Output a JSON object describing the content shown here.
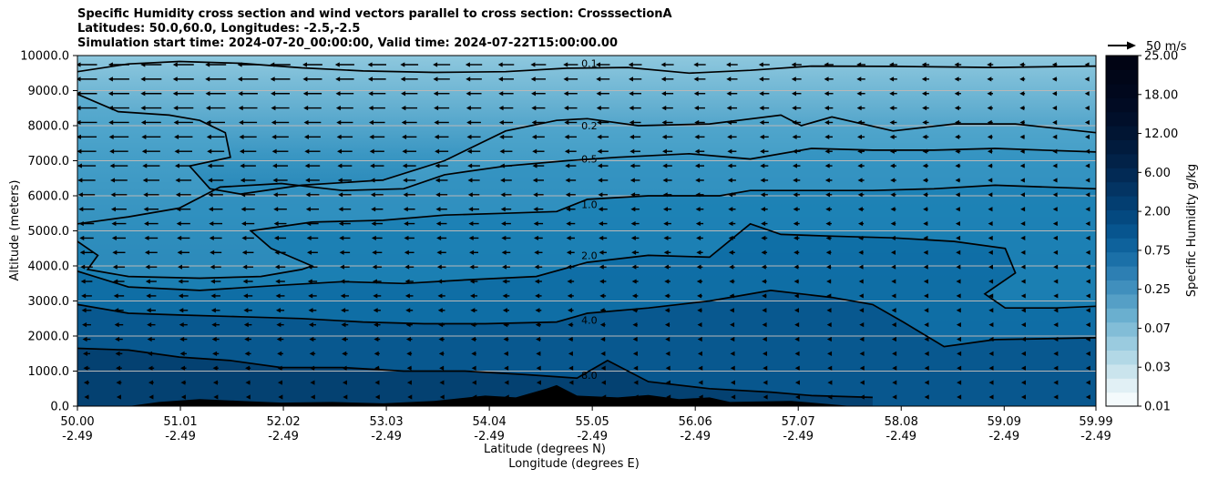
{
  "chart_data": {
    "type": "contourf",
    "title_lines": [
      "Specific Humidity cross section and wind vectors parallel to cross section: CrosssectionA",
      "Latitudes: 50.0,60.0, Longitudes: -2.5,-2.5",
      "Simulation start time: 2024-07-20_00:00:00, Valid time: 2024-07-22T15:00:00.00"
    ],
    "ylabel": "Altitude (meters)",
    "xlabel_lat": "Latitude (degrees N)",
    "xlabel_lon": "Longitude (degrees E)",
    "ylim": [
      0,
      10000
    ],
    "xlim": [
      50.0,
      59.99
    ],
    "y_ticks": [
      "0.0",
      "1000.0",
      "2000.0",
      "3000.0",
      "4000.0",
      "5000.0",
      "6000.0",
      "7000.0",
      "8000.0",
      "9000.0",
      "10000.0"
    ],
    "x_ticks": [
      {
        "lat": "50.00",
        "lon": "-2.49"
      },
      {
        "lat": "51.01",
        "lon": "-2.49"
      },
      {
        "lat": "52.02",
        "lon": "-2.49"
      },
      {
        "lat": "53.03",
        "lon": "-2.49"
      },
      {
        "lat": "54.04",
        "lon": "-2.49"
      },
      {
        "lat": "55.05",
        "lon": "-2.49"
      },
      {
        "lat": "56.06",
        "lon": "-2.49"
      },
      {
        "lat": "57.07",
        "lon": "-2.49"
      },
      {
        "lat": "58.08",
        "lon": "-2.49"
      },
      {
        "lat": "59.09",
        "lon": "-2.49"
      },
      {
        "lat": "59.99",
        "lon": "-2.49"
      }
    ],
    "colorbar_label": "Specific Humidity g/kg",
    "colorbar_ticks": [
      "0.01",
      "0.03",
      "0.07",
      "0.25",
      "0.75",
      "2.00",
      "6.00",
      "12.00",
      "18.00",
      "25.00"
    ],
    "quiver_key_label": "50 m/s",
    "contour_labels": [
      "0.1",
      "0.2",
      "0.5",
      "1.0",
      "2.0",
      "4.0",
      "8.0"
    ],
    "contours": [
      {
        "level": "0.1",
        "points": [
          [
            50.0,
            9540
          ],
          [
            50.5,
            9760
          ],
          [
            51.0,
            9830
          ],
          [
            51.6,
            9780
          ],
          [
            52.2,
            9650
          ],
          [
            52.8,
            9560
          ],
          [
            53.5,
            9520
          ],
          [
            54.2,
            9540
          ],
          [
            54.8,
            9640
          ],
          [
            55.4,
            9660
          ],
          [
            56.0,
            9500
          ],
          [
            56.6,
            9580
          ],
          [
            57.2,
            9700
          ],
          [
            58.0,
            9690
          ],
          [
            59.0,
            9660
          ],
          [
            59.99,
            9700
          ]
        ]
      },
      {
        "level": "0.2",
        "points": [
          [
            50.0,
            8900
          ],
          [
            50.4,
            8400
          ],
          [
            50.9,
            8300
          ],
          [
            51.2,
            8150
          ],
          [
            51.45,
            7800
          ],
          [
            51.5,
            7100
          ],
          [
            51.1,
            6850
          ],
          [
            51.3,
            6200
          ],
          [
            51.6,
            6050
          ],
          [
            52.2,
            6300
          ],
          [
            53.0,
            6450
          ],
          [
            53.6,
            7000
          ],
          [
            54.2,
            7850
          ],
          [
            54.7,
            8150
          ],
          [
            55.0,
            8200
          ],
          [
            55.5,
            8000
          ],
          [
            56.2,
            8050
          ],
          [
            56.9,
            8300
          ],
          [
            57.1,
            8000
          ],
          [
            57.4,
            8250
          ],
          [
            58.0,
            7850
          ],
          [
            58.6,
            8050
          ],
          [
            59.2,
            8050
          ],
          [
            59.99,
            7800
          ]
        ]
      },
      {
        "level": "0.5",
        "points": [
          [
            50.0,
            5200
          ],
          [
            50.5,
            5400
          ],
          [
            51.0,
            5650
          ],
          [
            51.4,
            6250
          ],
          [
            52.0,
            6350
          ],
          [
            52.6,
            6150
          ],
          [
            53.2,
            6200
          ],
          [
            53.6,
            6600
          ],
          [
            54.2,
            6850
          ],
          [
            54.8,
            7000
          ],
          [
            55.3,
            7100
          ],
          [
            56.0,
            7200
          ],
          [
            56.6,
            7050
          ],
          [
            57.2,
            7350
          ],
          [
            57.8,
            7300
          ],
          [
            58.4,
            7300
          ],
          [
            59.0,
            7350
          ],
          [
            59.99,
            7250
          ]
        ]
      },
      {
        "level": "1.0",
        "points": [
          [
            50.0,
            4700
          ],
          [
            50.2,
            4300
          ],
          [
            50.1,
            3900
          ],
          [
            50.5,
            3700
          ],
          [
            51.2,
            3650
          ],
          [
            51.8,
            3700
          ],
          [
            52.2,
            3900
          ],
          [
            52.3,
            4000
          ],
          [
            51.9,
            4500
          ],
          [
            51.7,
            5000
          ],
          [
            52.3,
            5250
          ],
          [
            53.0,
            5300
          ],
          [
            53.6,
            5450
          ],
          [
            54.2,
            5500
          ],
          [
            54.7,
            5550
          ],
          [
            55.0,
            5900
          ],
          [
            55.6,
            6000
          ],
          [
            56.3,
            6000
          ],
          [
            56.6,
            6150
          ],
          [
            57.2,
            6150
          ],
          [
            57.8,
            6150
          ],
          [
            58.4,
            6200
          ],
          [
            59.0,
            6300
          ],
          [
            59.99,
            6200
          ]
        ]
      },
      {
        "level": "2.0",
        "points": [
          [
            50.0,
            3850
          ],
          [
            50.5,
            3400
          ],
          [
            51.2,
            3300
          ],
          [
            52.0,
            3450
          ],
          [
            52.6,
            3550
          ],
          [
            53.2,
            3500
          ],
          [
            53.8,
            3600
          ],
          [
            54.5,
            3700
          ],
          [
            55.0,
            4100
          ],
          [
            55.6,
            4300
          ],
          [
            56.2,
            4250
          ],
          [
            56.6,
            5200
          ],
          [
            56.9,
            4900
          ],
          [
            57.4,
            4850
          ],
          [
            58.0,
            4800
          ],
          [
            58.6,
            4700
          ],
          [
            59.1,
            4500
          ],
          [
            59.2,
            3800
          ],
          [
            58.9,
            3200
          ],
          [
            59.1,
            2800
          ],
          [
            59.6,
            2800
          ],
          [
            59.99,
            2850
          ]
        ]
      },
      {
        "level": "4.0",
        "points": [
          [
            50.0,
            2900
          ],
          [
            50.5,
            2650
          ],
          [
            51.0,
            2600
          ],
          [
            51.6,
            2550
          ],
          [
            52.2,
            2500
          ],
          [
            52.8,
            2400
          ],
          [
            53.4,
            2350
          ],
          [
            54.0,
            2350
          ],
          [
            54.7,
            2400
          ],
          [
            55.0,
            2650
          ],
          [
            55.6,
            2800
          ],
          [
            56.2,
            3000
          ],
          [
            56.8,
            3300
          ],
          [
            57.4,
            3100
          ],
          [
            57.8,
            2900
          ],
          [
            58.1,
            2400
          ],
          [
            58.5,
            1700
          ],
          [
            59.0,
            1900
          ],
          [
            59.99,
            1950
          ]
        ]
      },
      {
        "level": "8.0",
        "points": [
          [
            50.0,
            1650
          ],
          [
            50.5,
            1600
          ],
          [
            51.0,
            1400
          ],
          [
            51.5,
            1300
          ],
          [
            52.0,
            1100
          ],
          [
            52.6,
            1100
          ],
          [
            53.2,
            1000
          ],
          [
            53.8,
            1000
          ],
          [
            54.4,
            900
          ],
          [
            54.9,
            800
          ],
          [
            55.2,
            1300
          ],
          [
            55.6,
            700
          ],
          [
            56.2,
            500
          ],
          [
            56.8,
            400
          ],
          [
            57.2,
            300
          ],
          [
            57.8,
            250
          ]
        ]
      }
    ],
    "terrain": [
      [
        50.0,
        0
      ],
      [
        50.5,
        0
      ],
      [
        50.8,
        120
      ],
      [
        51.2,
        200
      ],
      [
        51.6,
        150
      ],
      [
        52.0,
        100
      ],
      [
        52.5,
        120
      ],
      [
        53.0,
        80
      ],
      [
        53.5,
        150
      ],
      [
        54.0,
        300
      ],
      [
        54.3,
        250
      ],
      [
        54.6,
        500
      ],
      [
        54.7,
        600
      ],
      [
        54.9,
        300
      ],
      [
        55.3,
        250
      ],
      [
        55.6,
        320
      ],
      [
        55.9,
        200
      ],
      [
        56.2,
        250
      ],
      [
        56.4,
        120
      ],
      [
        57.0,
        150
      ],
      [
        57.2,
        100
      ],
      [
        57.6,
        0
      ],
      [
        59.99,
        0
      ]
    ]
  }
}
